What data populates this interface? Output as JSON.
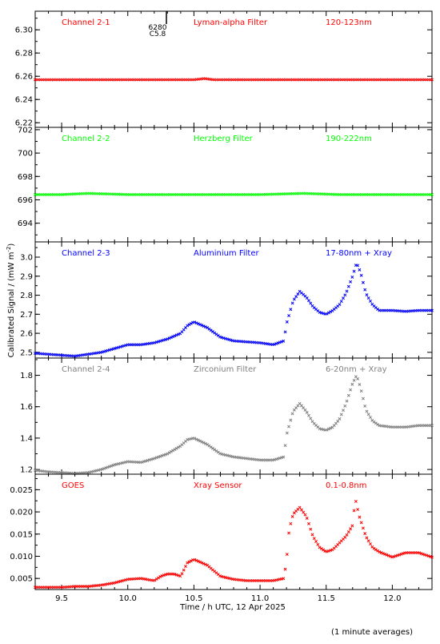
{
  "figure": {
    "ylabel_html_parts": [
      "Calibrated Signal / (mW m",
      "-2",
      ")"
    ],
    "xlabel": "Time / h UTC, 12 Apr 2025",
    "footnote": "(1 minute averages)",
    "xticks": [
      "9.5",
      "10.0",
      "10.5",
      "11.0",
      "11.5",
      "12.0"
    ],
    "annotation_top": [
      "6280",
      "C5.8"
    ]
  },
  "colors": {
    "red": "#ff0000",
    "green": "#00ff00",
    "blue": "#0000ff",
    "gray": "#808080",
    "goes": "#ff0000"
  },
  "chart_data": [
    {
      "type": "scatter",
      "series_name": "Channel 2-1",
      "filter": "Lyman-alpha Filter",
      "band": "120-123nm",
      "color": "red",
      "xlim": [
        9.3,
        12.3
      ],
      "ylim": [
        6.216,
        6.316
      ],
      "yticks": [
        6.22,
        6.24,
        6.26,
        6.28,
        6.3
      ],
      "ytick_labels": [
        "6.22",
        "6.24",
        "6.26",
        "6.28",
        "6.30"
      ],
      "x": [
        9.3,
        9.5,
        9.7,
        10.0,
        10.3,
        10.5,
        10.58,
        10.65,
        10.8,
        11.0,
        11.3,
        11.5,
        11.8,
        12.0,
        12.3
      ],
      "y": [
        6.257,
        6.257,
        6.257,
        6.257,
        6.257,
        6.257,
        6.258,
        6.257,
        6.257,
        6.257,
        6.257,
        6.257,
        6.257,
        6.257,
        6.257
      ]
    },
    {
      "type": "scatter",
      "series_name": "Channel 2-2",
      "filter": "Herzberg Filter",
      "band": "190-222nm",
      "color": "green",
      "xlim": [
        9.3,
        12.3
      ],
      "ylim": [
        692.4,
        702.2
      ],
      "yticks": [
        694,
        696,
        698,
        700,
        702
      ],
      "ytick_labels": [
        "694",
        "696",
        "698",
        "700",
        "702"
      ],
      "x": [
        9.3,
        9.5,
        9.7,
        10.0,
        10.3,
        10.6,
        11.0,
        11.33,
        11.6,
        12.0,
        12.3
      ],
      "y": [
        696.45,
        696.45,
        696.55,
        696.45,
        696.45,
        696.45,
        696.45,
        696.55,
        696.45,
        696.45,
        696.45
      ]
    },
    {
      "type": "scatter",
      "series_name": "Channel 2-3",
      "filter": "Aluminium Filter",
      "band": "17-80nm + Xray",
      "color": "blue",
      "xlim": [
        9.3,
        12.3
      ],
      "ylim": [
        2.47,
        3.08
      ],
      "yticks": [
        2.5,
        2.6,
        2.7,
        2.8,
        2.9,
        3.0
      ],
      "ytick_labels": [
        "2.5",
        "2.6",
        "2.7",
        "2.8",
        "2.9",
        "3.0"
      ],
      "x": [
        9.3,
        9.4,
        9.5,
        9.6,
        9.7,
        9.8,
        9.9,
        10.0,
        10.1,
        10.2,
        10.3,
        10.4,
        10.45,
        10.5,
        10.6,
        10.7,
        10.8,
        10.9,
        11.0,
        11.1,
        11.18,
        11.2,
        11.25,
        11.3,
        11.35,
        11.4,
        11.45,
        11.5,
        11.55,
        11.6,
        11.65,
        11.7,
        11.73,
        11.76,
        11.8,
        11.85,
        11.9,
        12.0,
        12.1,
        12.2,
        12.3
      ],
      "y": [
        2.495,
        2.49,
        2.485,
        2.48,
        2.49,
        2.5,
        2.52,
        2.54,
        2.54,
        2.55,
        2.57,
        2.6,
        2.64,
        2.66,
        2.63,
        2.58,
        2.56,
        2.555,
        2.55,
        2.54,
        2.56,
        2.65,
        2.77,
        2.82,
        2.79,
        2.74,
        2.71,
        2.7,
        2.72,
        2.75,
        2.81,
        2.9,
        2.97,
        2.92,
        2.81,
        2.75,
        2.72,
        2.72,
        2.715,
        2.72,
        2.72
      ]
    },
    {
      "type": "scatter",
      "series_name": "Channel 2-4",
      "filter": "Zirconium Filter",
      "band": "6-20nm + Xray",
      "color": "gray",
      "xlim": [
        9.3,
        12.3
      ],
      "ylim": [
        1.17,
        1.91
      ],
      "yticks": [
        1.2,
        1.4,
        1.6,
        1.8
      ],
      "ytick_labels": [
        "1.2",
        "1.4",
        "1.6",
        "1.8"
      ],
      "x": [
        9.3,
        9.4,
        9.5,
        9.6,
        9.7,
        9.8,
        9.9,
        10.0,
        10.1,
        10.2,
        10.3,
        10.4,
        10.45,
        10.5,
        10.6,
        10.7,
        10.8,
        10.9,
        11.0,
        11.1,
        11.18,
        11.2,
        11.25,
        11.3,
        11.35,
        11.4,
        11.45,
        11.5,
        11.55,
        11.6,
        11.65,
        11.7,
        11.73,
        11.76,
        11.8,
        11.85,
        11.9,
        12.0,
        12.1,
        12.2,
        12.3
      ],
      "y": [
        1.195,
        1.185,
        1.18,
        1.175,
        1.18,
        1.2,
        1.23,
        1.25,
        1.245,
        1.27,
        1.3,
        1.35,
        1.39,
        1.4,
        1.36,
        1.3,
        1.28,
        1.27,
        1.26,
        1.26,
        1.28,
        1.42,
        1.57,
        1.62,
        1.57,
        1.5,
        1.46,
        1.45,
        1.47,
        1.52,
        1.62,
        1.75,
        1.8,
        1.72,
        1.58,
        1.51,
        1.48,
        1.47,
        1.47,
        1.48,
        1.48
      ]
    },
    {
      "type": "scatter",
      "series_name": "GOES",
      "filter": "Xray Sensor",
      "band": "0.1-0.8nm",
      "color": "goes",
      "xlim": [
        9.3,
        12.3
      ],
      "ylim": [
        0.0025,
        0.0285
      ],
      "yticks": [
        0.005,
        0.01,
        0.015,
        0.02,
        0.025
      ],
      "ytick_labels": [
        "0.005",
        "0.010",
        "0.015",
        "0.020",
        "0.025"
      ],
      "x": [
        9.3,
        9.4,
        9.5,
        9.6,
        9.7,
        9.8,
        9.9,
        10.0,
        10.1,
        10.2,
        10.25,
        10.3,
        10.35,
        10.4,
        10.45,
        10.5,
        10.6,
        10.7,
        10.8,
        10.9,
        11.0,
        11.1,
        11.18,
        11.2,
        11.22,
        11.25,
        11.3,
        11.35,
        11.4,
        11.45,
        11.5,
        11.55,
        11.6,
        11.65,
        11.7,
        11.72,
        11.75,
        11.8,
        11.85,
        11.9,
        12.0,
        12.1,
        12.2,
        12.3
      ],
      "y": [
        0.003,
        0.003,
        0.003,
        0.0032,
        0.0032,
        0.0035,
        0.004,
        0.0048,
        0.005,
        0.0045,
        0.0055,
        0.006,
        0.006,
        0.0055,
        0.0085,
        0.0093,
        0.008,
        0.0055,
        0.0048,
        0.0045,
        0.0045,
        0.0045,
        0.005,
        0.009,
        0.016,
        0.0195,
        0.021,
        0.019,
        0.0145,
        0.012,
        0.011,
        0.0115,
        0.013,
        0.0145,
        0.017,
        0.023,
        0.019,
        0.0145,
        0.012,
        0.011,
        0.0098,
        0.0108,
        0.0108,
        0.0098
      ]
    }
  ]
}
